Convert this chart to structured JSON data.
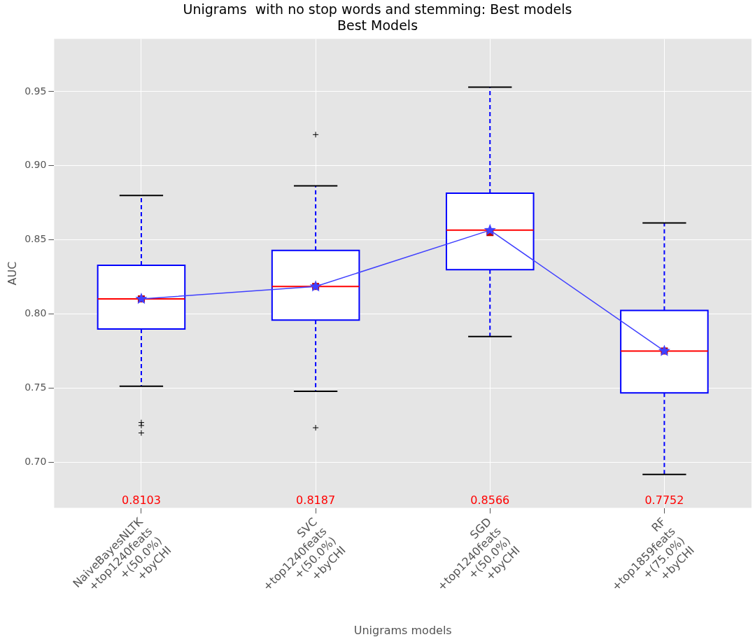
{
  "chart_data": {
    "type": "box",
    "title": "Unigrams  with no stop words and stemming: Best models",
    "subtitle": "Best Models",
    "xlabel": "Unigrams models",
    "ylabel": "AUC",
    "categories": [
      "NaiveBayesNLTK\n+top1240feats\n+(50.0%)\n+byCHI",
      "SVC\n+top1240feats\n+(50.0%)\n+byCHI",
      "SGD\n+top1240feats\n+(50.0%)\n+byCHI",
      "RF\n+top1859feats\n+(75.0%)\n+byCHI"
    ],
    "ylim": [
      0.6695,
      0.9855
    ],
    "yticks": [
      {
        "value": 0.7,
        "label": "0.70"
      },
      {
        "value": 0.75,
        "label": "0.75"
      },
      {
        "value": 0.8,
        "label": "0.80"
      },
      {
        "value": 0.85,
        "label": "0.85"
      },
      {
        "value": 0.9,
        "label": "0.90"
      },
      {
        "value": 0.95,
        "label": "0.95"
      }
    ],
    "grid": true,
    "legend": false,
    "series": [
      {
        "color": "#0000ff",
        "boxes": [
          {
            "low": 0.7515,
            "q1": 0.79,
            "median": 0.8103,
            "q3": 0.833,
            "high": 0.88,
            "mean": 0.8103,
            "outliers": [
              0.727,
              0.725,
              0.72
            ]
          },
          {
            "low": 0.748,
            "q1": 0.796,
            "median": 0.8187,
            "q3": 0.843,
            "high": 0.8865,
            "mean": 0.8187,
            "outliers": [
              0.921,
              0.7235
            ]
          },
          {
            "low": 0.785,
            "q1": 0.83,
            "median": 0.8566,
            "q3": 0.8815,
            "high": 0.953,
            "mean": 0.855
          },
          {
            "low": 0.692,
            "q1": 0.747,
            "median": 0.7752,
            "q3": 0.8025,
            "high": 0.8615,
            "mean": 0.7752
          }
        ]
      },
      {
        "type": "line",
        "color": "#4040ff",
        "marker": "star",
        "values": [
          0.8103,
          0.8187,
          0.8566,
          0.7752
        ]
      }
    ],
    "annotations": [
      "0.8103",
      "0.8187",
      "0.8566",
      "0.7752"
    ]
  }
}
